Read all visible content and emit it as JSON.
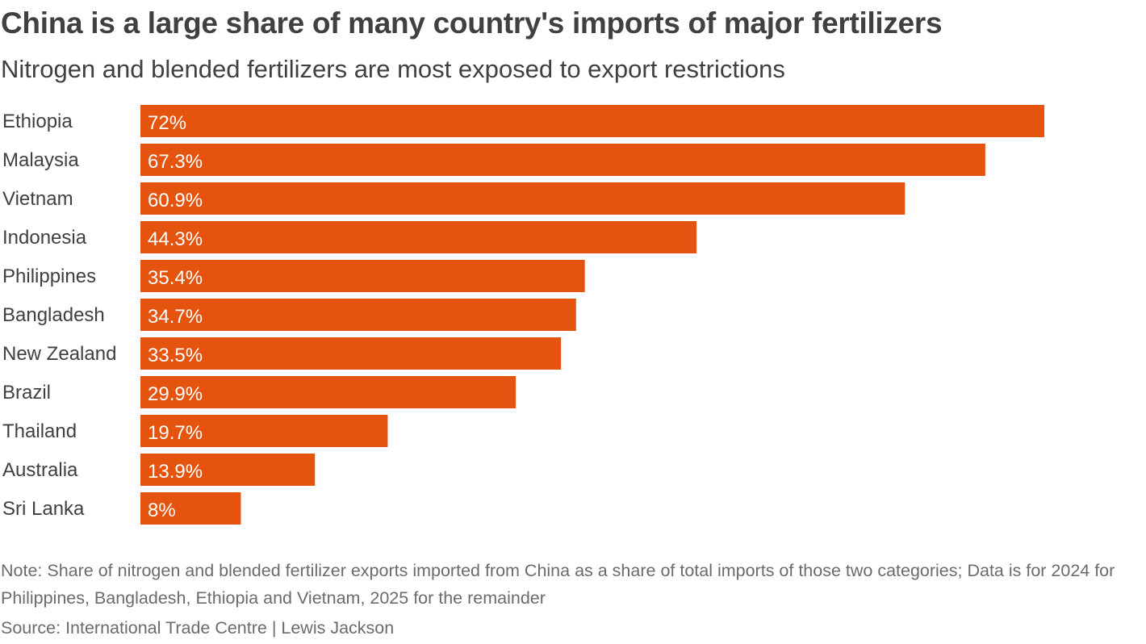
{
  "header": {
    "title": "China is a large share of many country's imports of major fertilizers",
    "subtitle": "Nitrogen and blended fertilizers are most exposed to export restrictions"
  },
  "footer": {
    "note": "Note: Share of nitrogen and blended fertilizer exports imported from China as a share of total imports of those two categories; Data is for 2024 for Philippines, Bangladesh, Ethiopia and Vietnam, 2025 for the remainder",
    "source": "Source: International Trade Centre | Lewis Jackson"
  },
  "colors": {
    "bar": "#e5540f",
    "bar_label": "#ffffff",
    "category_label": "#404040"
  },
  "chart_data": {
    "type": "bar",
    "orientation": "horizontal",
    "categories": [
      "Ethiopia",
      "Malaysia",
      "Vietnam",
      "Indonesia",
      "Philippines",
      "Bangladesh",
      "New Zealand",
      "Brazil",
      "Thailand",
      "Australia",
      "Sri Lanka"
    ],
    "values": [
      72,
      67.3,
      60.9,
      44.3,
      35.4,
      34.7,
      33.5,
      29.9,
      19.7,
      13.9,
      8
    ],
    "value_labels": [
      "72%",
      "67.3%",
      "60.9%",
      "44.3%",
      "35.4%",
      "34.7%",
      "33.5%",
      "29.9%",
      "19.7%",
      "13.9%",
      "8%"
    ],
    "unit": "%",
    "xlim": [
      0,
      72
    ],
    "grid": false,
    "legend": "none"
  }
}
